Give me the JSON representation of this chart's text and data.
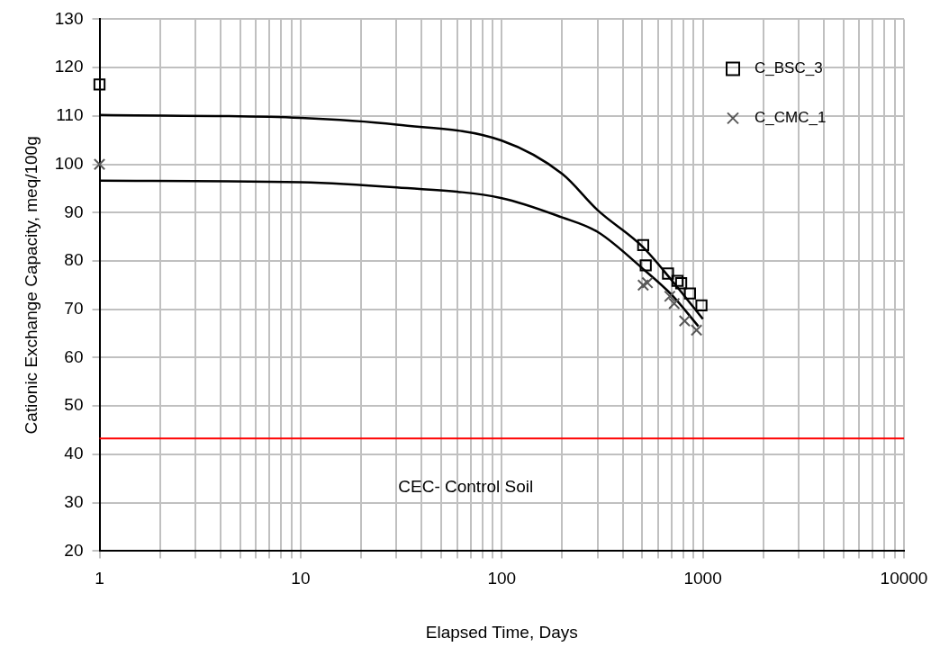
{
  "chart_data": {
    "type": "scatter",
    "xlabel": "Elapsed Time, Days",
    "ylabel": "Cationic Exchange Capacity, meq/100g",
    "log": "x",
    "xlim": [
      1,
      10000
    ],
    "ylim": [
      20,
      130
    ],
    "xticks": [
      1,
      {
        "value": 2,
        "label": null
      },
      {
        "value": 3,
        "label": null
      },
      {
        "value": 4,
        "label": null
      },
      {
        "value": 5,
        "label": null
      },
      {
        "value": 6,
        "label": null
      },
      {
        "value": 7,
        "label": null
      },
      {
        "value": 8,
        "label": null
      },
      {
        "value": 9,
        "label": null
      },
      10,
      {
        "value": 20,
        "label": null
      },
      {
        "value": 30,
        "label": null
      },
      {
        "value": 40,
        "label": null
      },
      {
        "value": 50,
        "label": null
      },
      {
        "value": 60,
        "label": null
      },
      {
        "value": 70,
        "label": null
      },
      {
        "value": 80,
        "label": null
      },
      {
        "value": 90,
        "label": null
      },
      100,
      {
        "value": 200,
        "label": null
      },
      {
        "value": 300,
        "label": null
      },
      {
        "value": 400,
        "label": null
      },
      {
        "value": 500,
        "label": null
      },
      {
        "value": 600,
        "label": null
      },
      {
        "value": 700,
        "label": null
      },
      {
        "value": 800,
        "label": null
      },
      {
        "value": 900,
        "label": null
      },
      1000,
      {
        "value": 2000,
        "label": null
      },
      {
        "value": 3000,
        "label": null
      },
      {
        "value": 4000,
        "label": null
      },
      {
        "value": 5000,
        "label": null
      },
      {
        "value": 6000,
        "label": null
      },
      {
        "value": 7000,
        "label": null
      },
      {
        "value": 8000,
        "label": null
      },
      {
        "value": 9000,
        "label": null
      },
      10000
    ],
    "yticks": [
      20,
      30,
      40,
      50,
      60,
      70,
      80,
      90,
      100,
      110,
      120,
      130
    ],
    "grid": true,
    "legend": "top right",
    "series": [
      {
        "name": "C_BSC_3",
        "marker": "square",
        "color": "#000000",
        "x": [
          1,
          505,
          520,
          671,
          748,
          780,
          863,
          984
        ],
        "values": [
          116.5,
          83.3,
          79.1,
          77.4,
          75.9,
          75.4,
          73.3,
          70.8
        ]
      },
      {
        "name": "C_CMC_1",
        "marker": "cross",
        "color": "#595959",
        "x": [
          1,
          505,
          530,
          685,
          720,
          812,
          930
        ],
        "values": [
          100,
          75,
          75.5,
          72.7,
          71.2,
          67.6,
          65.7
        ]
      },
      {
        "type": "line",
        "color": "#000000",
        "marker": "none",
        "x": [
          1,
          10,
          30,
          100,
          200,
          300,
          500,
          700,
          1000
        ],
        "values": [
          110.2,
          109.6,
          108.2,
          104.9,
          98,
          90.5,
          83,
          76,
          68
        ]
      },
      {
        "type": "line",
        "color": "#000000",
        "marker": "none",
        "x": [
          1,
          10,
          30,
          100,
          200,
          300,
          500,
          700,
          950
        ],
        "values": [
          96.6,
          96.3,
          95.2,
          93,
          89,
          86,
          78.5,
          73,
          66.5
        ]
      }
    ],
    "ref_lines": [
      {
        "axis": "y",
        "value": 43.3,
        "label": "CEC- Control Soil",
        "color": "#ff0000"
      }
    ]
  }
}
